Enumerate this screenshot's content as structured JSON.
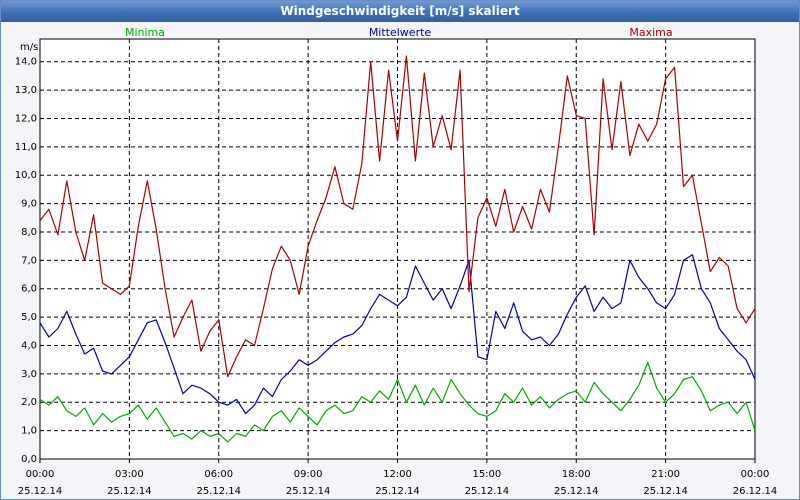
{
  "window": {
    "title": "Windgeschwindigkeit [m/s] skaliert"
  },
  "colors": {
    "min": "#00aa00",
    "mean": "#0000aa",
    "max": "#aa0000",
    "grid": "#000000",
    "plot_bg": "#ffffff"
  },
  "chart_data": {
    "type": "line",
    "title": "Windgeschwindigkeit [m/s] skaliert",
    "ylabel": "m/s",
    "xlabel": "",
    "ylim": [
      0,
      14.8
    ],
    "xlim_hours": [
      0,
      24
    ],
    "grid": true,
    "y_ticks": [
      "0,0",
      "1,0",
      "2,0",
      "3,0",
      "4,0",
      "5,0",
      "6,0",
      "7,0",
      "8,0",
      "9,0",
      "10,0",
      "11,0",
      "12,0",
      "13,0",
      "14,0"
    ],
    "x_ticks": [
      {
        "time": "00:00",
        "date": "25.12.14"
      },
      {
        "time": "03:00",
        "date": "25.12.14"
      },
      {
        "time": "06:00",
        "date": "25.12.14"
      },
      {
        "time": "09:00",
        "date": "25.12.14"
      },
      {
        "time": "12:00",
        "date": "25.12.14"
      },
      {
        "time": "15:00",
        "date": "25.12.14"
      },
      {
        "time": "18:00",
        "date": "25.12.14"
      },
      {
        "time": "21:00",
        "date": "25.12.14"
      },
      {
        "time": "00:00",
        "date": "26.12.14"
      }
    ],
    "series": [
      {
        "name": "Minima",
        "key": "min",
        "x": [
          0,
          0.3,
          0.6,
          0.9,
          1.2,
          1.5,
          1.8,
          2.1,
          2.4,
          2.7,
          3.0,
          3.3,
          3.6,
          3.9,
          4.2,
          4.5,
          4.8,
          5.1,
          5.4,
          5.7,
          6.0,
          6.3,
          6.6,
          6.9,
          7.2,
          7.5,
          7.8,
          8.1,
          8.4,
          8.7,
          9.0,
          9.3,
          9.6,
          9.9,
          10.2,
          10.5,
          10.8,
          11.1,
          11.4,
          11.7,
          12.0,
          12.3,
          12.6,
          12.9,
          13.2,
          13.5,
          13.8,
          14.1,
          14.4,
          14.7,
          15.0,
          15.3,
          15.6,
          15.9,
          16.2,
          16.5,
          16.8,
          17.1,
          17.4,
          17.7,
          18.0,
          18.3,
          18.6,
          18.9,
          19.2,
          19.5,
          19.8,
          20.1,
          20.4,
          20.7,
          21.0,
          21.3,
          21.6,
          21.9,
          22.2,
          22.5,
          22.8,
          23.1,
          23.4,
          23.7,
          24.0
        ],
        "values": [
          2.1,
          1.9,
          2.2,
          1.7,
          1.5,
          1.8,
          1.2,
          1.6,
          1.3,
          1.5,
          1.6,
          1.9,
          1.4,
          1.8,
          1.3,
          0.8,
          0.9,
          0.7,
          1.0,
          0.8,
          0.9,
          0.6,
          0.9,
          0.8,
          1.2,
          1.0,
          1.5,
          1.7,
          1.3,
          1.8,
          1.5,
          1.2,
          1.7,
          1.9,
          1.6,
          1.7,
          2.2,
          2.0,
          2.4,
          2.1,
          2.8,
          2.0,
          2.6,
          1.9,
          2.5,
          2.0,
          2.8,
          2.3,
          1.9,
          1.6,
          1.5,
          1.7,
          2.3,
          2.0,
          2.5,
          1.9,
          2.2,
          1.8,
          2.1,
          2.3,
          2.4,
          2.0,
          2.7,
          2.3,
          2.0,
          1.7,
          2.1,
          2.6,
          3.4,
          2.5,
          2.0,
          2.3,
          2.8,
          2.9,
          2.4,
          1.7,
          1.9,
          2.0,
          1.6,
          2.0,
          1.0
        ]
      },
      {
        "name": "Mittelwerte",
        "key": "mean",
        "x": [
          0,
          0.3,
          0.6,
          0.9,
          1.2,
          1.5,
          1.8,
          2.1,
          2.4,
          2.7,
          3.0,
          3.3,
          3.6,
          3.9,
          4.2,
          4.5,
          4.8,
          5.1,
          5.4,
          5.7,
          6.0,
          6.3,
          6.6,
          6.9,
          7.2,
          7.5,
          7.8,
          8.1,
          8.4,
          8.7,
          9.0,
          9.3,
          9.6,
          9.9,
          10.2,
          10.5,
          10.8,
          11.1,
          11.4,
          11.7,
          12.0,
          12.3,
          12.6,
          12.9,
          13.2,
          13.5,
          13.8,
          14.1,
          14.4,
          14.7,
          15.0,
          15.3,
          15.6,
          15.9,
          16.2,
          16.5,
          16.8,
          17.1,
          17.4,
          17.7,
          18.0,
          18.3,
          18.6,
          18.9,
          19.2,
          19.5,
          19.8,
          20.1,
          20.4,
          20.7,
          21.0,
          21.3,
          21.6,
          21.9,
          22.2,
          22.5,
          22.8,
          23.1,
          23.4,
          23.7,
          24.0
        ],
        "values": [
          4.8,
          4.3,
          4.6,
          5.2,
          4.4,
          3.7,
          3.9,
          3.1,
          3.0,
          3.3,
          3.6,
          4.2,
          4.8,
          4.9,
          4.1,
          3.2,
          2.3,
          2.6,
          2.5,
          2.3,
          2.0,
          1.9,
          2.1,
          1.6,
          1.9,
          2.5,
          2.2,
          2.8,
          3.1,
          3.5,
          3.3,
          3.5,
          3.8,
          4.1,
          4.3,
          4.4,
          4.7,
          5.3,
          5.8,
          5.6,
          5.4,
          5.7,
          6.8,
          6.2,
          5.6,
          6.0,
          5.3,
          6.1,
          7.0,
          3.6,
          3.5,
          5.2,
          4.6,
          5.5,
          4.5,
          4.2,
          4.3,
          4.0,
          4.4,
          5.1,
          5.7,
          6.1,
          5.2,
          5.7,
          5.3,
          5.5,
          7.0,
          6.4,
          6.0,
          5.5,
          5.3,
          5.8,
          7.0,
          7.2,
          6.0,
          5.5,
          4.6,
          4.2,
          3.8,
          3.5,
          2.8
        ]
      },
      {
        "name": "Maxima",
        "key": "max",
        "x": [
          0,
          0.3,
          0.6,
          0.9,
          1.2,
          1.5,
          1.8,
          2.1,
          2.4,
          2.7,
          3.0,
          3.3,
          3.6,
          3.9,
          4.2,
          4.5,
          4.8,
          5.1,
          5.4,
          5.7,
          6.0,
          6.3,
          6.6,
          6.9,
          7.2,
          7.5,
          7.8,
          8.1,
          8.4,
          8.7,
          9.0,
          9.3,
          9.6,
          9.9,
          10.2,
          10.5,
          10.8,
          11.1,
          11.4,
          11.7,
          12.0,
          12.3,
          12.6,
          12.9,
          13.2,
          13.5,
          13.8,
          14.1,
          14.4,
          14.7,
          15.0,
          15.3,
          15.6,
          15.9,
          16.2,
          16.5,
          16.8,
          17.1,
          17.4,
          17.7,
          18.0,
          18.3,
          18.6,
          18.9,
          19.2,
          19.5,
          19.8,
          20.1,
          20.4,
          20.7,
          21.0,
          21.3,
          21.6,
          21.9,
          22.2,
          22.5,
          22.8,
          23.1,
          23.4,
          23.7,
          24.0
        ],
        "values": [
          8.4,
          8.8,
          7.9,
          9.8,
          8.0,
          7.0,
          8.6,
          6.2,
          6.0,
          5.8,
          6.1,
          8.2,
          9.8,
          8.1,
          6.0,
          4.3,
          5.0,
          5.6,
          3.8,
          4.5,
          4.9,
          2.9,
          3.6,
          4.2,
          4.0,
          5.3,
          6.7,
          7.5,
          7.0,
          5.8,
          7.5,
          8.4,
          9.2,
          10.3,
          9.0,
          8.8,
          10.4,
          14.0,
          10.5,
          13.7,
          11.2,
          14.2,
          10.5,
          13.6,
          11.0,
          12.1,
          10.9,
          13.7,
          5.9,
          8.5,
          9.2,
          8.2,
          9.5,
          8.0,
          8.9,
          8.1,
          9.5,
          8.7,
          11.0,
          13.5,
          12.1,
          12.0,
          7.9,
          13.4,
          10.9,
          13.3,
          10.7,
          11.8,
          11.2,
          11.8,
          13.4,
          13.8,
          9.6,
          10.0,
          8.3,
          6.6,
          7.1,
          6.8,
          5.3,
          4.8,
          5.3
        ]
      }
    ]
  }
}
